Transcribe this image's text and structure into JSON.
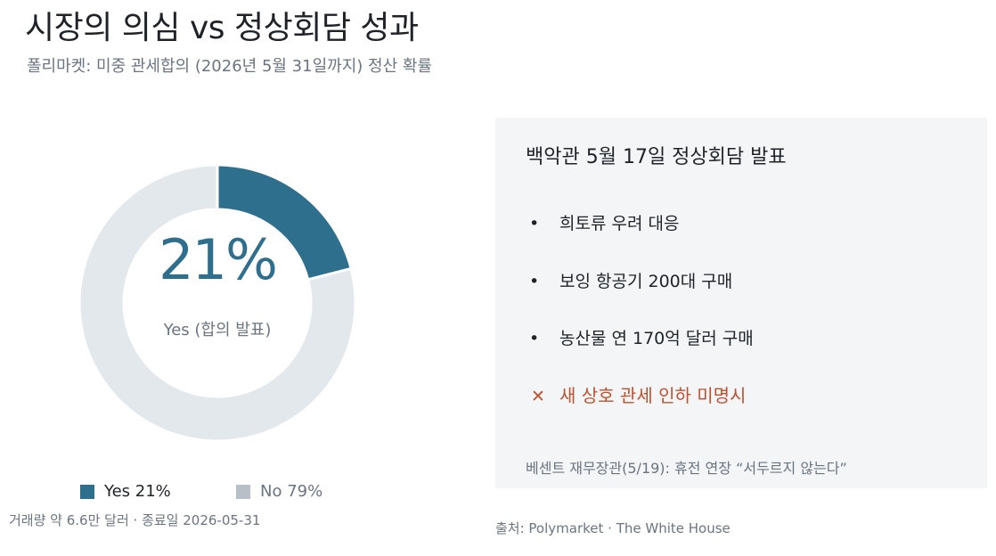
{
  "header": {
    "title": "시장의 의심 vs 정상회담 성과",
    "subtitle": "폴리마켓: 미중 관세합의 (2026년 5월 31일까지) 정산 확률"
  },
  "chart_data": {
    "type": "pie",
    "donut": true,
    "categories": [
      "Yes",
      "No"
    ],
    "values": [
      21,
      79
    ],
    "colors": [
      "#2e6f8e",
      "#e3e8ec"
    ],
    "center_value": "21%",
    "center_label": "Yes (합의 발표)",
    "legend": [
      "Yes 21%",
      "No 79%"
    ],
    "legend_colors": [
      "#2e6f8e",
      "#b8c0c7"
    ],
    "legend_placement": "bottom"
  },
  "footnote_left": "거래량 약 6.6만 달러 · 종료일 2026-05-31",
  "panel": {
    "title": "백악관 5월 17일 정상회담 발표",
    "bullet_symbol": "•",
    "bullets": [
      "희토류 우려 대응",
      "보잉 항공기 200대 구매",
      "농산물 연 170억 달러 구매"
    ],
    "negative_symbol": "✕",
    "negative": "새 상호 관세 인하  미명시",
    "negative_color": "#c0512f",
    "note": "베센트 재무장관(5/19): 휴전 연장 “서두르지 않는다”"
  },
  "footnote_right": "출처: Polymarket · The White House"
}
